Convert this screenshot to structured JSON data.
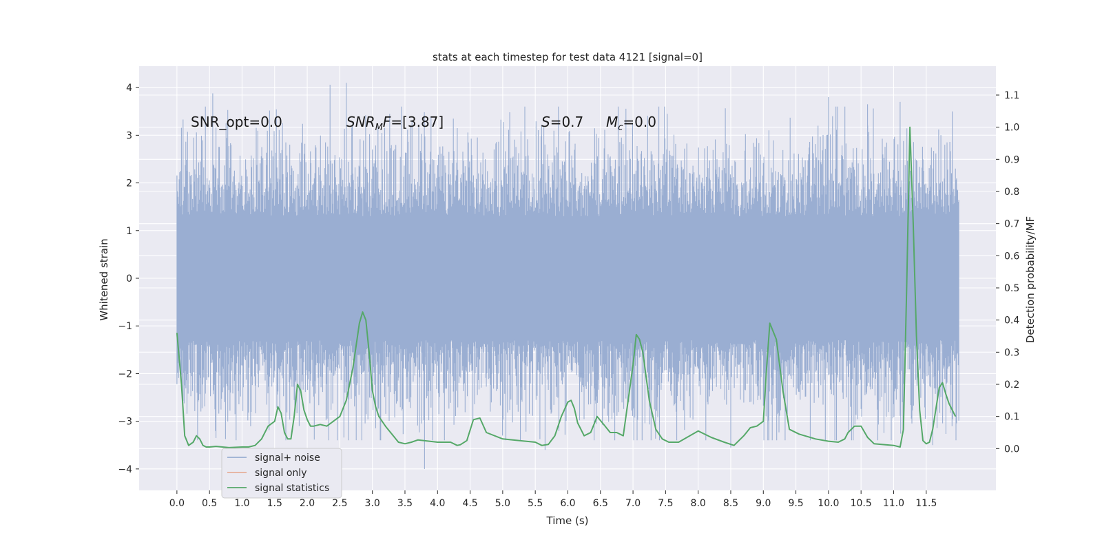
{
  "chart_data": {
    "type": "line",
    "title": "stats at each timestep for test data 4121 [signal=0]",
    "xlabel": "Time (s)",
    "ylabel_left": "Whitened strain",
    "ylabel_right": "Detection probability/MF",
    "xlim": [
      -0.58,
      12.57
    ],
    "ylim_left": [
      -4.45,
      4.45
    ],
    "ylim_right": [
      -0.13,
      1.19
    ],
    "x_ticks": [
      0.0,
      0.5,
      1.0,
      1.5,
      2.0,
      2.5,
      3.0,
      3.5,
      4.0,
      4.5,
      5.0,
      5.5,
      6.0,
      6.5,
      7.0,
      7.5,
      8.0,
      8.5,
      9.0,
      9.5,
      10.0,
      10.5,
      11.0,
      11.5
    ],
    "x_tick_labels": [
      "0.0",
      "0.5",
      "1.0",
      "1.5",
      "2.0",
      "2.5",
      "3.0",
      "3.5",
      "4.0",
      "4.5",
      "5.0",
      "5.5",
      "6.0",
      "6.5",
      "7.0",
      "7.5",
      "8.0",
      "8.5",
      "9.0",
      "9.5",
      "10.0",
      "10.5",
      "11.0",
      "11.5"
    ],
    "y_left_ticks": [
      4,
      3,
      2,
      1,
      0,
      -1,
      -2,
      -3,
      -4
    ],
    "y_left_tick_labels": [
      "4",
      "3",
      "2",
      "1",
      "0",
      "−1",
      "−2",
      "−3",
      "−4"
    ],
    "y_right_ticks": [
      1.1,
      1.0,
      0.9,
      0.8,
      0.7,
      0.6,
      0.5,
      0.4,
      0.3,
      0.2,
      0.1,
      0.0
    ],
    "y_right_tick_labels": [
      "1.1",
      "1.0",
      "0.9",
      "0.8",
      "0.7",
      "0.6",
      "0.5",
      "0.4",
      "0.3",
      "0.2",
      "0.1",
      "0.0"
    ],
    "grid": true,
    "legend": {
      "position": "lower-left"
    },
    "series": [
      {
        "name": "signal+ noise",
        "axis": "left",
        "color": "#9aaed2",
        "x_range": [
          0.0,
          12.0
        ],
        "typical_band": [
          -1.3,
          1.3
        ],
        "extremes": [
          {
            "x": 0.55,
            "y": 3.88
          },
          {
            "x": 2.35,
            "y": 4.06
          },
          {
            "x": 2.6,
            "y": 4.1
          },
          {
            "x": 10.0,
            "y": 3.8
          },
          {
            "x": 10.6,
            "y": 3.65
          },
          {
            "x": 11.1,
            "y": 3.7
          },
          {
            "x": 11.9,
            "y": 3.5
          },
          {
            "x": 3.8,
            "y": -4.0
          },
          {
            "x": 11.6,
            "y": -3.5
          },
          {
            "x": 8.5,
            "y": -3.55
          },
          {
            "x": 5.65,
            "y": -3.6
          },
          {
            "x": 0.6,
            "y": -3.35
          }
        ]
      },
      {
        "name": "signal only",
        "axis": "left",
        "color": "#e5ae9a",
        "x": [],
        "y": []
      },
      {
        "name": "signal statistics",
        "axis": "right",
        "color": "#55a868",
        "x": [
          0.0,
          0.07,
          0.12,
          0.18,
          0.25,
          0.3,
          0.35,
          0.4,
          0.45,
          0.5,
          0.6,
          0.8,
          1.0,
          1.1,
          1.2,
          1.3,
          1.4,
          1.5,
          1.55,
          1.6,
          1.65,
          1.7,
          1.75,
          1.8,
          1.85,
          1.9,
          1.95,
          2.0,
          2.05,
          2.1,
          2.2,
          2.3,
          2.5,
          2.6,
          2.7,
          2.8,
          2.85,
          2.9,
          2.95,
          3.0,
          3.05,
          3.1,
          3.2,
          3.4,
          3.5,
          3.6,
          3.7,
          4.0,
          4.2,
          4.3,
          4.35,
          4.45,
          4.55,
          4.65,
          4.75,
          5.0,
          5.5,
          5.6,
          5.7,
          5.8,
          5.9,
          6.0,
          6.05,
          6.1,
          6.15,
          6.25,
          6.35,
          6.45,
          6.55,
          6.65,
          6.75,
          6.85,
          7.0,
          7.05,
          7.1,
          7.15,
          7.25,
          7.35,
          7.45,
          7.55,
          7.7,
          8.0,
          8.2,
          8.4,
          8.55,
          8.7,
          8.8,
          8.9,
          9.0,
          9.05,
          9.1,
          9.2,
          9.3,
          9.4,
          9.55,
          9.8,
          10.0,
          10.15,
          10.25,
          10.3,
          10.4,
          10.5,
          10.6,
          10.7,
          11.0,
          11.1,
          11.15,
          11.2,
          11.25,
          11.3,
          11.35,
          11.4,
          11.45,
          11.5,
          11.55,
          11.6,
          11.7,
          11.75,
          11.8,
          11.85,
          11.95
        ],
        "y": [
          0.36,
          0.2,
          0.04,
          0.01,
          0.02,
          0.04,
          0.03,
          0.01,
          0.005,
          0.005,
          0.007,
          0.003,
          0.005,
          0.005,
          0.01,
          0.03,
          0.07,
          0.085,
          0.13,
          0.11,
          0.05,
          0.03,
          0.03,
          0.1,
          0.2,
          0.18,
          0.12,
          0.09,
          0.07,
          0.07,
          0.075,
          0.07,
          0.1,
          0.15,
          0.25,
          0.39,
          0.425,
          0.4,
          0.3,
          0.18,
          0.13,
          0.1,
          0.07,
          0.02,
          0.015,
          0.02,
          0.027,
          0.02,
          0.02,
          0.01,
          0.012,
          0.025,
          0.09,
          0.095,
          0.05,
          0.03,
          0.02,
          0.01,
          0.013,
          0.04,
          0.1,
          0.145,
          0.15,
          0.125,
          0.08,
          0.04,
          0.05,
          0.1,
          0.075,
          0.05,
          0.05,
          0.04,
          0.26,
          0.355,
          0.34,
          0.3,
          0.15,
          0.06,
          0.03,
          0.02,
          0.02,
          0.055,
          0.035,
          0.02,
          0.01,
          0.04,
          0.065,
          0.07,
          0.085,
          0.25,
          0.39,
          0.34,
          0.18,
          0.06,
          0.045,
          0.03,
          0.023,
          0.02,
          0.03,
          0.05,
          0.07,
          0.07,
          0.035,
          0.015,
          0.01,
          0.005,
          0.06,
          0.5,
          1.0,
          0.7,
          0.35,
          0.12,
          0.025,
          0.015,
          0.02,
          0.06,
          0.19,
          0.205,
          0.17,
          0.14,
          0.1
        ]
      }
    ],
    "annotations": [
      {
        "text": "SNR_opt=0.0"
      },
      {
        "text": "SNR_MF=[3.87]"
      },
      {
        "text": "S=0.7"
      },
      {
        "text": "M_c=0.0"
      }
    ]
  }
}
